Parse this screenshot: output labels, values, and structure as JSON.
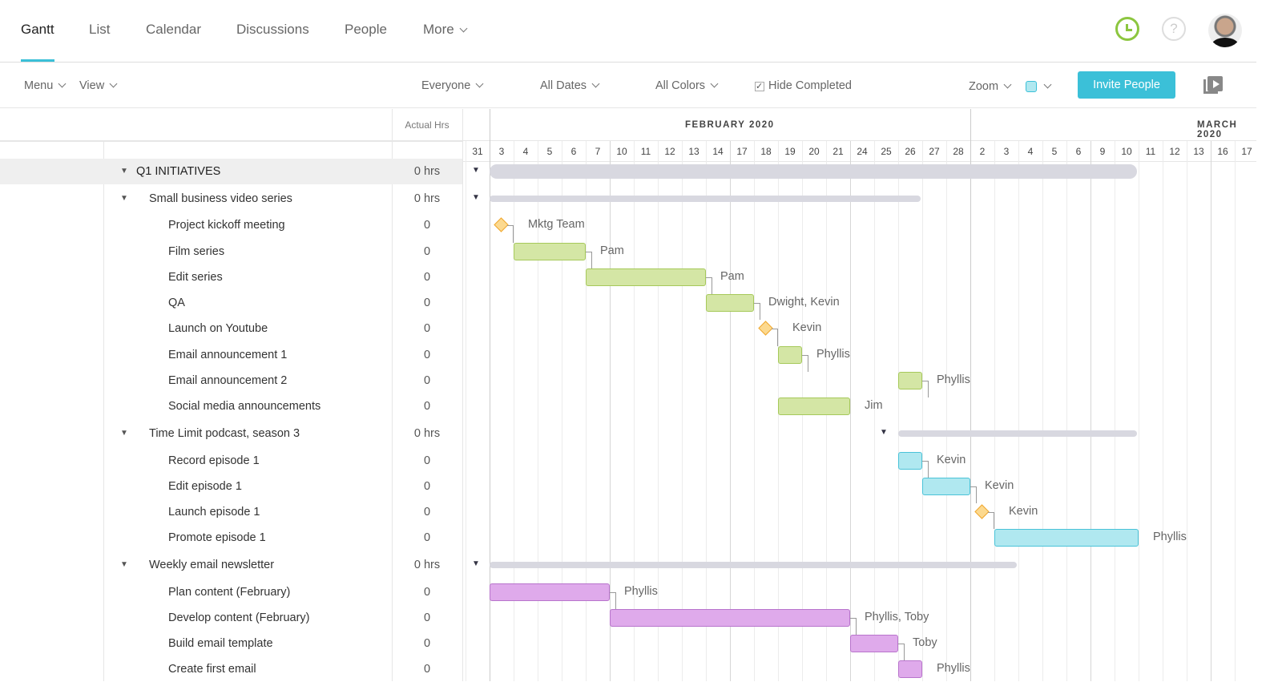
{
  "nav": {
    "tabs": [
      "Gantt",
      "List",
      "Calendar",
      "Discussions",
      "People",
      "More"
    ],
    "active": "Gantt"
  },
  "toolbar": {
    "menu": "Menu",
    "view": "View",
    "everyone": "Everyone",
    "all_dates": "All Dates",
    "all_colors": "All Colors",
    "hide_completed": "Hide Completed",
    "hide_completed_checked": true,
    "zoom": "Zoom",
    "invite": "Invite People",
    "color_swatch": "#b0e8f0"
  },
  "columns": {
    "actual_hrs": "Actual Hrs"
  },
  "timeline": {
    "months": [
      {
        "label": "FEBRUARY 2020"
      },
      {
        "label": "MARCH 2020"
      }
    ],
    "days": [
      31,
      3,
      4,
      5,
      6,
      7,
      10,
      11,
      12,
      13,
      14,
      17,
      18,
      19,
      20,
      21,
      24,
      25,
      26,
      27,
      28,
      2,
      3,
      4,
      5,
      6,
      9,
      10,
      11,
      12,
      13,
      16,
      17
    ]
  },
  "colors": {
    "green": "#d4e6a5",
    "cyan": "#b0e8f0",
    "purple": "#dfaaeb",
    "milestone": "#fcd98f",
    "accent": "#3bc0d8"
  },
  "rows": [
    {
      "name": "Q1 INITIATIVES",
      "hrs": "0 hrs",
      "level": 0,
      "type": "summary",
      "start": "2020-02-03",
      "end": "2020-03-10"
    },
    {
      "name": "Small business video series",
      "hrs": "0 hrs",
      "level": 1,
      "type": "summary",
      "start": "2020-02-03",
      "end": "2020-02-26"
    },
    {
      "name": "Project kickoff meeting",
      "hrs": "0",
      "level": 2,
      "type": "milestone",
      "start": "2020-02-03",
      "assignee": "Mktg Team"
    },
    {
      "name": "Film series",
      "hrs": "0",
      "level": 2,
      "type": "task",
      "color": "green",
      "start": "2020-02-04",
      "end": "2020-02-06",
      "assignee": "Pam"
    },
    {
      "name": "Edit series",
      "hrs": "0",
      "level": 2,
      "type": "task",
      "color": "green",
      "start": "2020-02-07",
      "end": "2020-02-13",
      "assignee": "Pam"
    },
    {
      "name": "QA",
      "hrs": "0",
      "level": 2,
      "type": "task",
      "color": "green",
      "start": "2020-02-14",
      "end": "2020-02-17",
      "assignee": "Dwight, Kevin"
    },
    {
      "name": "Launch on Youtube",
      "hrs": "0",
      "level": 2,
      "type": "milestone",
      "start": "2020-02-18",
      "assignee": "Kevin"
    },
    {
      "name": "Email announcement 1",
      "hrs": "0",
      "level": 2,
      "type": "task",
      "color": "green",
      "start": "2020-02-19",
      "end": "2020-02-19",
      "assignee": "Phyllis"
    },
    {
      "name": "Email announcement 2",
      "hrs": "0",
      "level": 2,
      "type": "task",
      "color": "green",
      "start": "2020-02-26",
      "end": "2020-02-26",
      "assignee": "Phyllis"
    },
    {
      "name": "Social media announcements",
      "hrs": "0",
      "level": 2,
      "type": "task",
      "color": "green",
      "start": "2020-02-19",
      "end": "2020-02-21",
      "assignee": "Jim"
    },
    {
      "name": "Time Limit podcast, season 3",
      "hrs": "0 hrs",
      "level": 1,
      "type": "summary",
      "start": "2020-02-26",
      "end": "2020-03-10"
    },
    {
      "name": "Record episode 1",
      "hrs": "0",
      "level": 2,
      "type": "task",
      "color": "cyan",
      "start": "2020-02-26",
      "end": "2020-02-26",
      "assignee": "Kevin"
    },
    {
      "name": "Edit episode 1",
      "hrs": "0",
      "level": 2,
      "type": "task",
      "color": "cyan",
      "start": "2020-02-27",
      "end": "2020-02-28",
      "assignee": "Kevin"
    },
    {
      "name": "Launch episode 1",
      "hrs": "0",
      "level": 2,
      "type": "milestone",
      "start": "2020-03-02",
      "assignee": "Kevin"
    },
    {
      "name": "Promote episode 1",
      "hrs": "0",
      "level": 2,
      "type": "task",
      "color": "cyan",
      "start": "2020-03-03",
      "end": "2020-03-10",
      "assignee": "Phyllis"
    },
    {
      "name": "Weekly email newsletter",
      "hrs": "0 hrs",
      "level": 1,
      "type": "summary",
      "start": "2020-02-03",
      "end": "2020-03-03"
    },
    {
      "name": "Plan content (February)",
      "hrs": "0",
      "level": 2,
      "type": "task",
      "color": "purple",
      "start": "2020-02-03",
      "end": "2020-02-07",
      "assignee": "Phyllis"
    },
    {
      "name": "Develop content (February)",
      "hrs": "0",
      "level": 2,
      "type": "task",
      "color": "purple",
      "start": "2020-02-10",
      "end": "2020-02-21",
      "assignee": "Phyllis, Toby"
    },
    {
      "name": "Build email template",
      "hrs": "0",
      "level": 2,
      "type": "task",
      "color": "purple",
      "start": "2020-02-24",
      "end": "2020-02-25",
      "assignee": "Toby"
    },
    {
      "name": "Create first email",
      "hrs": "0",
      "level": 2,
      "type": "task",
      "color": "purple",
      "start": "2020-02-26",
      "end": "2020-02-26",
      "assignee": "Phyllis"
    }
  ]
}
